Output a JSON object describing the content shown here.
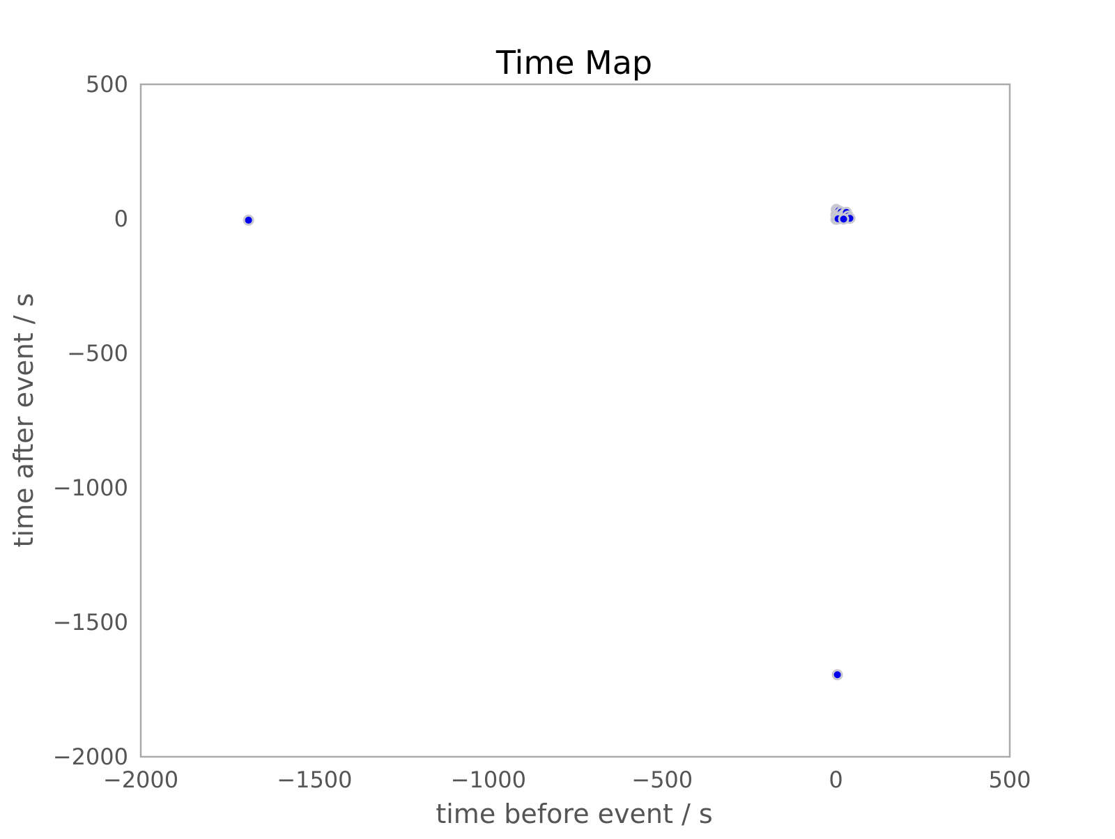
{
  "chart_data": {
    "type": "scatter",
    "title": "Time Map",
    "xlabel": "time before event / s",
    "ylabel": "time after event / s",
    "xlim": [
      -2000,
      500
    ],
    "ylim": [
      -2000,
      500
    ],
    "xticks": [
      -2000,
      -1500,
      -1000,
      -500,
      0,
      500
    ],
    "yticks": [
      -2000,
      -1500,
      -1000,
      -500,
      0,
      500
    ],
    "xtick_labels": [
      "−2000",
      "−1500",
      "−1000",
      "−500",
      "0",
      "500"
    ],
    "ytick_labels": [
      "−2000",
      "−1500",
      "−1000",
      "−500",
      "0",
      "500"
    ],
    "grid": false,
    "colors": {
      "point_fill": "#0000ee",
      "point_edge": "#c8c8d2",
      "frame": "#aaaaaa"
    },
    "points": [
      {
        "x": -1690,
        "y": -5
      },
      {
        "x": 4,
        "y": -1695
      },
      {
        "x": 1,
        "y": 35
      },
      {
        "x": 2,
        "y": 28
      },
      {
        "x": 5,
        "y": 22
      },
      {
        "x": 0,
        "y": 15
      },
      {
        "x": 3,
        "y": 8
      },
      {
        "x": 1,
        "y": 2
      },
      {
        "x": 0,
        "y": -2
      },
      {
        "x": 8,
        "y": 30
      },
      {
        "x": 10,
        "y": 18
      },
      {
        "x": 12,
        "y": 6
      },
      {
        "x": 15,
        "y": 25
      },
      {
        "x": 18,
        "y": 12
      },
      {
        "x": 20,
        "y": 3
      },
      {
        "x": 25,
        "y": 20
      },
      {
        "x": 30,
        "y": 24
      },
      {
        "x": 35,
        "y": 10
      },
      {
        "x": 40,
        "y": 2
      },
      {
        "x": 6,
        "y": 0
      },
      {
        "x": 22,
        "y": -1
      }
    ]
  }
}
